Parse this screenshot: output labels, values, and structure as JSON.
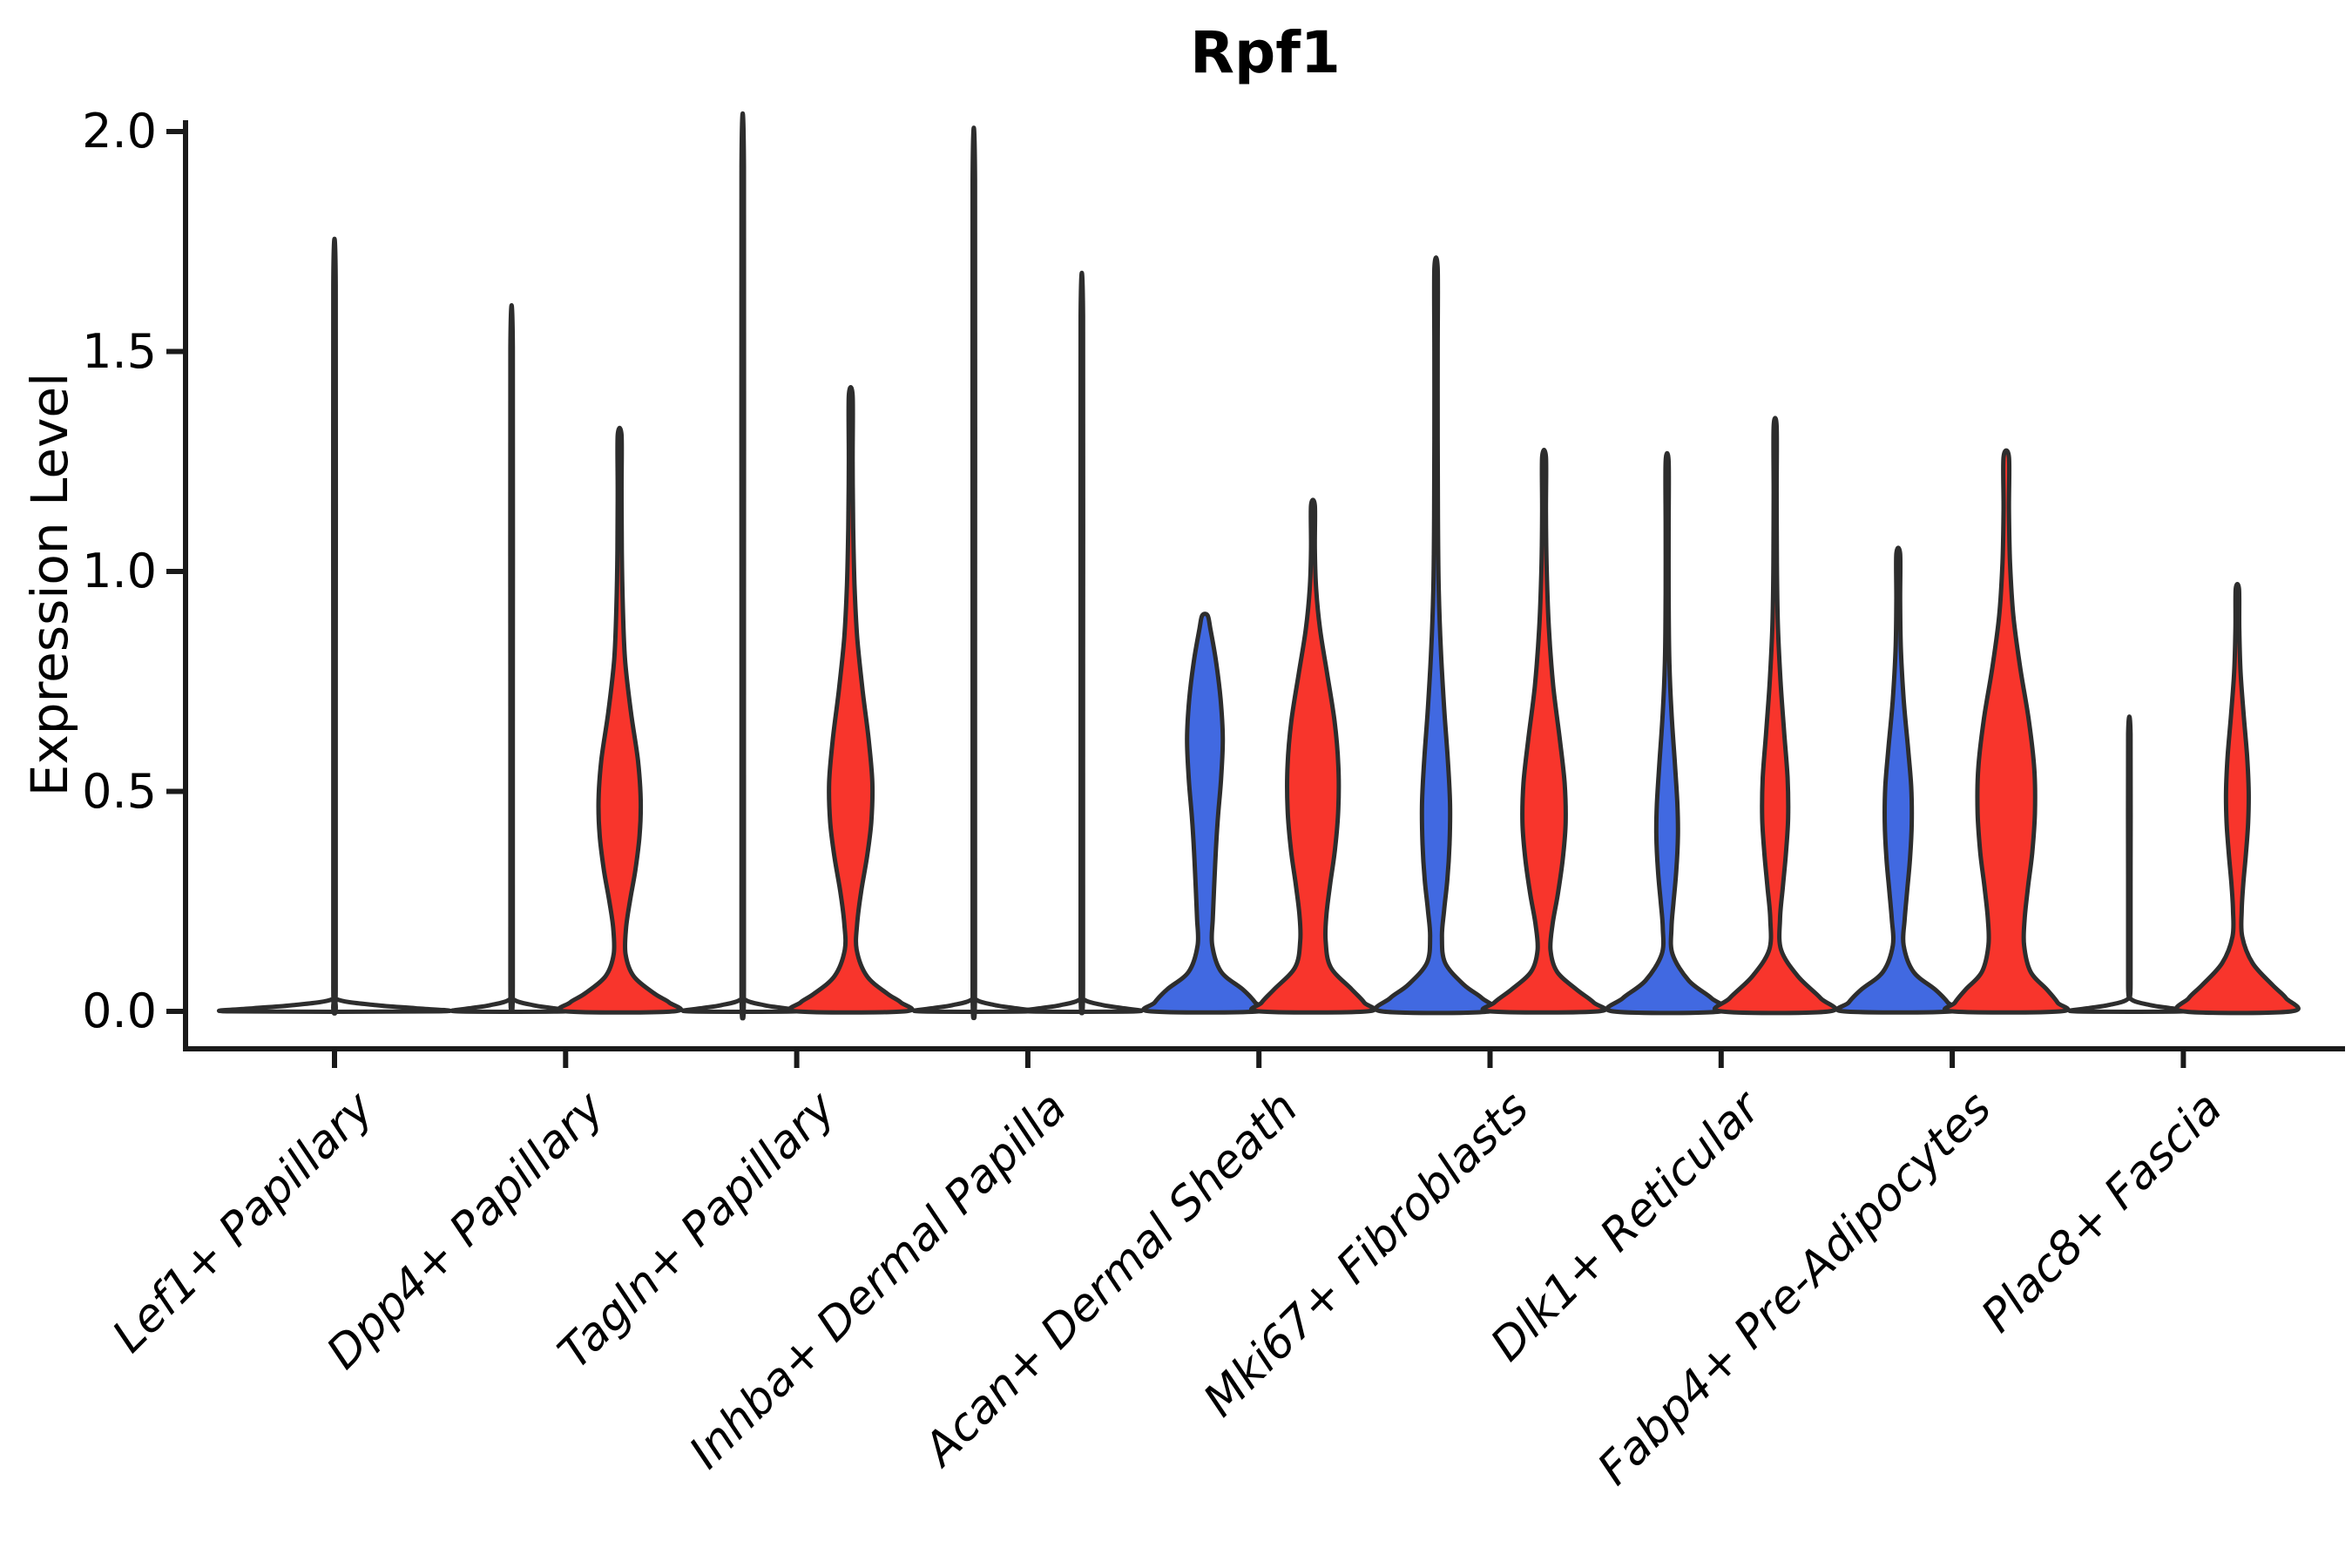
{
  "chart_data": {
    "type": "violin",
    "title": "Rpf1",
    "xlabel": "",
    "ylabel": "Expression Level",
    "ylim": [
      0.0,
      2.0
    ],
    "grid": false,
    "legend": "none",
    "ytick_labels": [
      "2.0",
      "1.5",
      "1.0",
      "0.5",
      "0.0"
    ],
    "ytick_values": [
      2.0,
      1.5,
      1.0,
      0.5,
      0.0
    ],
    "categories": [
      "Lef1+ Papillary",
      "Dpp4+ Papillary",
      "Tagln+ Papillary",
      "Inhba+ Dermal Papilla",
      "Acan+ Dermal Sheath",
      "Mki67+ Fibroblasts",
      "Dlk1+ Reticular",
      "Fabp4+ Pre-Adipocytes",
      "Plac8+ Fascia"
    ],
    "groups": [
      {
        "name": "group-1",
        "color": "#4169E1"
      },
      {
        "name": "group-2",
        "color": "#F8352C"
      }
    ],
    "colors": {
      "blue": "#4169E1",
      "red": "#F8352C",
      "outline": "#2d2d2d",
      "axis": "#1a1a1a",
      "none": "#ffffff"
    },
    "violins": [
      {
        "category": 0,
        "side": "full",
        "fill": "none",
        "max": 1.65,
        "profile": [
          [
            1.65,
            0.012
          ],
          [
            0.8,
            0.012
          ],
          [
            0.06,
            0.012
          ],
          [
            0.028,
            0.018
          ],
          [
            0.014,
            0.4
          ],
          [
            0.007,
            0.78
          ],
          [
            0,
            1
          ]
        ]
      },
      {
        "category": 1,
        "side": "left",
        "fill": "none",
        "max": 1.51,
        "profile": [
          [
            1.51,
            0.022
          ],
          [
            0.75,
            0.022
          ],
          [
            0.06,
            0.022
          ],
          [
            0.028,
            0.03
          ],
          [
            0.014,
            0.4
          ],
          [
            0.007,
            0.78
          ],
          [
            0,
            1
          ]
        ]
      },
      {
        "category": 1,
        "side": "right",
        "fill": "red",
        "max": 1.31,
        "profile": [
          [
            1.31,
            0.035
          ],
          [
            1.18,
            0.035
          ],
          [
            1.05,
            0.04
          ],
          [
            0.92,
            0.06
          ],
          [
            0.8,
            0.1
          ],
          [
            0.68,
            0.21
          ],
          [
            0.57,
            0.34
          ],
          [
            0.48,
            0.39
          ],
          [
            0.4,
            0.37
          ],
          [
            0.32,
            0.29
          ],
          [
            0.25,
            0.19
          ],
          [
            0.19,
            0.12
          ],
          [
            0.13,
            0.11
          ],
          [
            0.08,
            0.26
          ],
          [
            0.04,
            0.65
          ],
          [
            0.02,
            0.92
          ],
          [
            0,
            1
          ]
        ]
      },
      {
        "category": 2,
        "side": "left",
        "fill": "none",
        "max": 1.92,
        "profile": [
          [
            1.92,
            0.022
          ],
          [
            0.95,
            0.022
          ],
          [
            0.06,
            0.022
          ],
          [
            0.028,
            0.03
          ],
          [
            0.014,
            0.4
          ],
          [
            0.007,
            0.78
          ],
          [
            0,
            1
          ]
        ]
      },
      {
        "category": 2,
        "side": "right",
        "fill": "red",
        "max": 1.4,
        "profile": [
          [
            1.4,
            0.035
          ],
          [
            1.25,
            0.035
          ],
          [
            1.1,
            0.045
          ],
          [
            0.97,
            0.07
          ],
          [
            0.85,
            0.12
          ],
          [
            0.73,
            0.22
          ],
          [
            0.62,
            0.33
          ],
          [
            0.52,
            0.4
          ],
          [
            0.43,
            0.38
          ],
          [
            0.35,
            0.3
          ],
          [
            0.27,
            0.19
          ],
          [
            0.2,
            0.12
          ],
          [
            0.14,
            0.11
          ],
          [
            0.08,
            0.3
          ],
          [
            0.04,
            0.68
          ],
          [
            0.02,
            0.93
          ],
          [
            0,
            1
          ]
        ]
      },
      {
        "category": 3,
        "side": "left",
        "fill": "none",
        "max": 1.89,
        "profile": [
          [
            1.89,
            0.022
          ],
          [
            0.94,
            0.022
          ],
          [
            0.06,
            0.022
          ],
          [
            0.028,
            0.03
          ],
          [
            0.014,
            0.4
          ],
          [
            0.007,
            0.78
          ],
          [
            0,
            1
          ]
        ]
      },
      {
        "category": 3,
        "side": "right",
        "fill": "none",
        "max": 1.58,
        "profile": [
          [
            1.58,
            0.022
          ],
          [
            0.79,
            0.022
          ],
          [
            0.06,
            0.022
          ],
          [
            0.028,
            0.03
          ],
          [
            0.014,
            0.4
          ],
          [
            0.007,
            0.78
          ],
          [
            0,
            1
          ]
        ]
      },
      {
        "category": 4,
        "side": "left",
        "fill": "blue",
        "max": 0.9,
        "profile": [
          [
            0.9,
            0.05
          ],
          [
            0.87,
            0.1
          ],
          [
            0.8,
            0.2
          ],
          [
            0.71,
            0.29
          ],
          [
            0.62,
            0.33
          ],
          [
            0.53,
            0.3
          ],
          [
            0.44,
            0.24
          ],
          [
            0.36,
            0.2
          ],
          [
            0.28,
            0.17
          ],
          [
            0.21,
            0.145
          ],
          [
            0.15,
            0.135
          ],
          [
            0.09,
            0.3
          ],
          [
            0.05,
            0.7
          ],
          [
            0.02,
            0.93
          ],
          [
            0,
            1
          ]
        ]
      },
      {
        "category": 4,
        "side": "right",
        "fill": "red",
        "max": 1.15,
        "profile": [
          [
            1.15,
            0.035
          ],
          [
            1.05,
            0.035
          ],
          [
            0.96,
            0.06
          ],
          [
            0.87,
            0.13
          ],
          [
            0.77,
            0.26
          ],
          [
            0.66,
            0.4
          ],
          [
            0.56,
            0.47
          ],
          [
            0.46,
            0.47
          ],
          [
            0.37,
            0.41
          ],
          [
            0.29,
            0.32
          ],
          [
            0.22,
            0.25
          ],
          [
            0.16,
            0.235
          ],
          [
            0.1,
            0.33
          ],
          [
            0.05,
            0.72
          ],
          [
            0.02,
            0.95
          ],
          [
            0,
            1
          ]
        ]
      },
      {
        "category": 5,
        "side": "left",
        "fill": "blue",
        "max": 1.69,
        "profile": [
          [
            1.69,
            0.03
          ],
          [
            1.5,
            0.03
          ],
          [
            1.3,
            0.03
          ],
          [
            1.12,
            0.035
          ],
          [
            0.96,
            0.05
          ],
          [
            0.82,
            0.09
          ],
          [
            0.69,
            0.15
          ],
          [
            0.57,
            0.22
          ],
          [
            0.47,
            0.26
          ],
          [
            0.38,
            0.25
          ],
          [
            0.3,
            0.21
          ],
          [
            0.23,
            0.15
          ],
          [
            0.17,
            0.11
          ],
          [
            0.11,
            0.17
          ],
          [
            0.06,
            0.52
          ],
          [
            0.03,
            0.85
          ],
          [
            0,
            1
          ]
        ]
      },
      {
        "category": 5,
        "side": "right",
        "fill": "red",
        "max": 1.26,
        "profile": [
          [
            1.26,
            0.035
          ],
          [
            1.13,
            0.035
          ],
          [
            1.0,
            0.05
          ],
          [
            0.87,
            0.09
          ],
          [
            0.74,
            0.17
          ],
          [
            0.62,
            0.29
          ],
          [
            0.52,
            0.38
          ],
          [
            0.43,
            0.4
          ],
          [
            0.35,
            0.35
          ],
          [
            0.27,
            0.26
          ],
          [
            0.2,
            0.16
          ],
          [
            0.14,
            0.12
          ],
          [
            0.09,
            0.24
          ],
          [
            0.05,
            0.6
          ],
          [
            0.02,
            0.92
          ],
          [
            0,
            1
          ]
        ]
      },
      {
        "category": 6,
        "side": "left",
        "fill": "blue",
        "max": 1.25,
        "profile": [
          [
            1.25,
            0.028
          ],
          [
            1.1,
            0.028
          ],
          [
            0.95,
            0.028
          ],
          [
            0.8,
            0.04
          ],
          [
            0.68,
            0.08
          ],
          [
            0.57,
            0.14
          ],
          [
            0.47,
            0.19
          ],
          [
            0.4,
            0.2
          ],
          [
            0.32,
            0.17
          ],
          [
            0.25,
            0.12
          ],
          [
            0.19,
            0.08
          ],
          [
            0.13,
            0.1
          ],
          [
            0.07,
            0.4
          ],
          [
            0.03,
            0.82
          ],
          [
            0,
            1
          ]
        ]
      },
      {
        "category": 6,
        "side": "right",
        "fill": "red",
        "max": 1.33,
        "profile": [
          [
            1.33,
            0.028
          ],
          [
            1.18,
            0.028
          ],
          [
            1.02,
            0.032
          ],
          [
            0.88,
            0.05
          ],
          [
            0.75,
            0.1
          ],
          [
            0.63,
            0.17
          ],
          [
            0.53,
            0.23
          ],
          [
            0.44,
            0.24
          ],
          [
            0.36,
            0.2
          ],
          [
            0.28,
            0.14
          ],
          [
            0.21,
            0.09
          ],
          [
            0.14,
            0.11
          ],
          [
            0.08,
            0.42
          ],
          [
            0.03,
            0.84
          ],
          [
            0,
            1
          ]
        ]
      },
      {
        "category": 7,
        "side": "left",
        "fill": "blue",
        "max": 1.04,
        "profile": [
          [
            1.04,
            0.035
          ],
          [
            0.93,
            0.035
          ],
          [
            0.82,
            0.05
          ],
          [
            0.71,
            0.1
          ],
          [
            0.6,
            0.18
          ],
          [
            0.51,
            0.24
          ],
          [
            0.43,
            0.25
          ],
          [
            0.35,
            0.22
          ],
          [
            0.28,
            0.17
          ],
          [
            0.21,
            0.12
          ],
          [
            0.15,
            0.1
          ],
          [
            0.09,
            0.28
          ],
          [
            0.05,
            0.68
          ],
          [
            0.02,
            0.92
          ],
          [
            0,
            1
          ]
        ]
      },
      {
        "category": 7,
        "side": "right",
        "fill": "red",
        "max": 1.26,
        "profile": [
          [
            1.26,
            0.05
          ],
          [
            1.14,
            0.05
          ],
          [
            1.02,
            0.07
          ],
          [
            0.9,
            0.13
          ],
          [
            0.78,
            0.26
          ],
          [
            0.66,
            0.42
          ],
          [
            0.55,
            0.52
          ],
          [
            0.45,
            0.53
          ],
          [
            0.36,
            0.48
          ],
          [
            0.28,
            0.4
          ],
          [
            0.21,
            0.34
          ],
          [
            0.15,
            0.33
          ],
          [
            0.09,
            0.45
          ],
          [
            0.05,
            0.75
          ],
          [
            0.02,
            0.95
          ],
          [
            0,
            1
          ]
        ]
      },
      {
        "category": 8,
        "side": "left",
        "fill": "none",
        "max": 0.63,
        "profile": [
          [
            0.63,
            0.022
          ],
          [
            0.31,
            0.022
          ],
          [
            0.06,
            0.022
          ],
          [
            0.028,
            0.03
          ],
          [
            0.014,
            0.4
          ],
          [
            0.007,
            0.78
          ],
          [
            0,
            1
          ]
        ]
      },
      {
        "category": 8,
        "side": "right",
        "fill": "red",
        "max": 0.96,
        "profile": [
          [
            0.96,
            0.03
          ],
          [
            0.87,
            0.035
          ],
          [
            0.77,
            0.06
          ],
          [
            0.67,
            0.12
          ],
          [
            0.58,
            0.18
          ],
          [
            0.5,
            0.21
          ],
          [
            0.43,
            0.2
          ],
          [
            0.36,
            0.16
          ],
          [
            0.29,
            0.11
          ],
          [
            0.23,
            0.08
          ],
          [
            0.17,
            0.09
          ],
          [
            0.11,
            0.28
          ],
          [
            0.06,
            0.65
          ],
          [
            0.03,
            0.9
          ],
          [
            0,
            1
          ]
        ]
      }
    ]
  }
}
